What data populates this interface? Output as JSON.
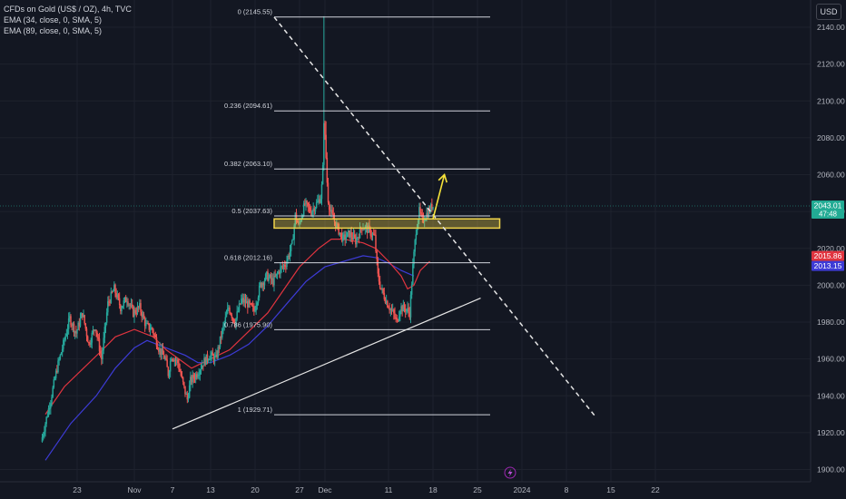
{
  "header": {
    "symbol_line": "CFDs on Gold (US$ / OZ), 4h, TVC",
    "ema1_line": "EMA (34, close, 0, SMA, 5)",
    "ema2_line": "EMA (89, close, 0, SMA, 5)",
    "currency_button": "USD"
  },
  "colors": {
    "background": "#131722",
    "up_candle": "#26a69a",
    "down_candle": "#ef5350",
    "ema34": "#e0343f",
    "ema89": "#3d3bd6",
    "fib_line": "#d1d4dc",
    "zone_fill": "#f0d44a",
    "arrow": "#f5e23a",
    "price_tag_green": "#22ab94"
  },
  "chart_data": {
    "type": "candlestick",
    "timeframe": "4h",
    "y_range": [
      1895,
      2155
    ],
    "y_ticks": [
      1900,
      1920,
      1940,
      1960,
      1980,
      2000,
      2020,
      2040,
      2060,
      2080,
      2100,
      2120,
      2140
    ],
    "y_tick_labels": [
      "1900.00",
      "1920.00",
      "1940.00",
      "1960.00",
      "1980.00",
      "2000.00",
      "2020.00",
      "2040.00",
      "2060.00",
      "2080.00",
      "2100.00",
      "2120.00",
      "2140.00"
    ],
    "x_labels": [
      {
        "label": "23",
        "day": -9
      },
      {
        "label": "Nov",
        "day": 0
      },
      {
        "label": "7",
        "day": 6
      },
      {
        "label": "13",
        "day": 12
      },
      {
        "label": "20",
        "day": 19
      },
      {
        "label": "27",
        "day": 26
      },
      {
        "label": "Dec",
        "day": 30
      },
      {
        "label": "11",
        "day": 40
      },
      {
        "label": "18",
        "day": 47
      },
      {
        "label": "25",
        "day": 54
      },
      {
        "label": "2024",
        "day": 61
      },
      {
        "label": "8",
        "day": 68
      },
      {
        "label": "15",
        "day": 75
      },
      {
        "label": "22",
        "day": 82
      }
    ],
    "price_path": [
      [
        -14.5,
        1915
      ],
      [
        -13,
        1938
      ],
      [
        -12,
        1955
      ],
      [
        -11,
        1968
      ],
      [
        -10,
        1982
      ],
      [
        -9,
        1974
      ],
      [
        -8,
        1985
      ],
      [
        -7,
        1968
      ],
      [
        -6,
        1978
      ],
      [
        -5,
        1960
      ],
      [
        -4,
        1990
      ],
      [
        -3,
        1998
      ],
      [
        -2,
        1988
      ],
      [
        -1,
        1993
      ],
      [
        0,
        1985
      ],
      [
        1,
        1988
      ],
      [
        2,
        1978
      ],
      [
        3,
        1976
      ],
      [
        4,
        1966
      ],
      [
        5,
        1960
      ],
      [
        5.5,
        1952
      ],
      [
        6,
        1962
      ],
      [
        7,
        1958
      ],
      [
        8,
        1944
      ],
      [
        8.5,
        1938
      ],
      [
        9,
        1948
      ],
      [
        10,
        1952
      ],
      [
        11,
        1958
      ],
      [
        12,
        1962
      ],
      [
        13,
        1960
      ],
      [
        14,
        1975
      ],
      [
        15,
        1988
      ],
      [
        16,
        1980
      ],
      [
        17,
        1992
      ],
      [
        18,
        1990
      ],
      [
        19,
        1986
      ],
      [
        20,
        2000
      ],
      [
        21,
        2005
      ],
      [
        22,
        2002
      ],
      [
        23,
        2008
      ],
      [
        24,
        2012
      ],
      [
        25,
        2022
      ],
      [
        25.5,
        2038
      ],
      [
        26,
        2032
      ],
      [
        27,
        2044
      ],
      [
        28,
        2040
      ],
      [
        29,
        2045
      ],
      [
        29.5,
        2048
      ],
      [
        29.8,
        2058
      ],
      [
        30,
        2090
      ],
      [
        30.3,
        2072
      ],
      [
        30.6,
        2048
      ],
      [
        31,
        2040
      ],
      [
        32,
        2032
      ],
      [
        33,
        2025
      ],
      [
        34,
        2028
      ],
      [
        35,
        2024
      ],
      [
        36,
        2032
      ],
      [
        37,
        2030
      ],
      [
        38,
        2026
      ],
      [
        38.5,
        2005
      ],
      [
        39,
        1998
      ],
      [
        40,
        1990
      ],
      [
        41,
        1984
      ],
      [
        41.5,
        1980
      ],
      [
        42,
        1988
      ],
      [
        43,
        1987
      ],
      [
        43.5,
        1985
      ],
      [
        44,
        2010
      ],
      [
        44.5,
        2030
      ],
      [
        45,
        2040
      ],
      [
        45.5,
        2035
      ],
      [
        46,
        2038
      ],
      [
        46.5,
        2040
      ],
      [
        47,
        2043
      ]
    ],
    "ema34": [
      [
        -14,
        1930
      ],
      [
        -11,
        1945
      ],
      [
        -8,
        1955
      ],
      [
        -5,
        1965
      ],
      [
        -3,
        1972
      ],
      [
        0,
        1976
      ],
      [
        3,
        1972
      ],
      [
        5,
        1965
      ],
      [
        7,
        1960
      ],
      [
        9,
        1955
      ],
      [
        12,
        1960
      ],
      [
        15,
        1965
      ],
      [
        18,
        1975
      ],
      [
        21,
        1985
      ],
      [
        24,
        2000
      ],
      [
        26,
        2010
      ],
      [
        29,
        2020
      ],
      [
        31,
        2025
      ],
      [
        33,
        2025
      ],
      [
        36,
        2023
      ],
      [
        38,
        2020
      ],
      [
        40,
        2013
      ],
      [
        42,
        2005
      ],
      [
        43,
        1998
      ],
      [
        44,
        2000
      ],
      [
        45,
        2008
      ],
      [
        46.5,
        2013
      ]
    ],
    "ema89": [
      [
        -14,
        1905
      ],
      [
        -10,
        1925
      ],
      [
        -6,
        1940
      ],
      [
        -3,
        1955
      ],
      [
        0,
        1966
      ],
      [
        2,
        1970
      ],
      [
        5,
        1966
      ],
      [
        8,
        1962
      ],
      [
        10,
        1958
      ],
      [
        12,
        1958
      ],
      [
        15,
        1962
      ],
      [
        18,
        1968
      ],
      [
        21,
        1978
      ],
      [
        24,
        1990
      ],
      [
        27,
        2002
      ],
      [
        30,
        2010
      ],
      [
        33,
        2013
      ],
      [
        36,
        2016
      ],
      [
        38,
        2015
      ],
      [
        40,
        2012
      ],
      [
        42,
        2008
      ],
      [
        44,
        2005
      ]
    ],
    "fib_levels": [
      {
        "label": "0 (2145.55)",
        "price": 2145.55
      },
      {
        "label": "0.236 (2094.61)",
        "price": 2094.61
      },
      {
        "label": "0.382 (2063.10)",
        "price": 2063.1
      },
      {
        "label": "0.5 (2037.63)",
        "price": 2037.63
      },
      {
        "label": "0.618 (2012.16)",
        "price": 2012.16
      },
      {
        "label": "0.786 (1975.90)",
        "price": 1975.9
      },
      {
        "label": "1 (1929.71)",
        "price": 1929.71
      }
    ],
    "fib_day_range": [
      22,
      56
    ],
    "zone": {
      "day_from": 22,
      "day_to": 57.5,
      "price_low": 2031,
      "price_high": 2036
    },
    "downtrend_line": {
      "from": [
        22,
        2145.5
      ],
      "to": [
        72.5,
        1929
      ]
    },
    "uptrend_line": {
      "from": [
        6,
        1922
      ],
      "to": [
        54.5,
        1993
      ]
    },
    "arrow": {
      "from": [
        47,
        2036
      ],
      "to": [
        48.8,
        2060
      ]
    },
    "price_tags": [
      {
        "text": "2043.01",
        "sub": "47:48",
        "price": 2043.01,
        "color": "#22ab94"
      },
      {
        "text": "2015.86",
        "price": 2015.86,
        "color": "#e0343f"
      },
      {
        "text": "2013.15",
        "price": 2013.15,
        "color": "#3d3bd6"
      }
    ]
  }
}
